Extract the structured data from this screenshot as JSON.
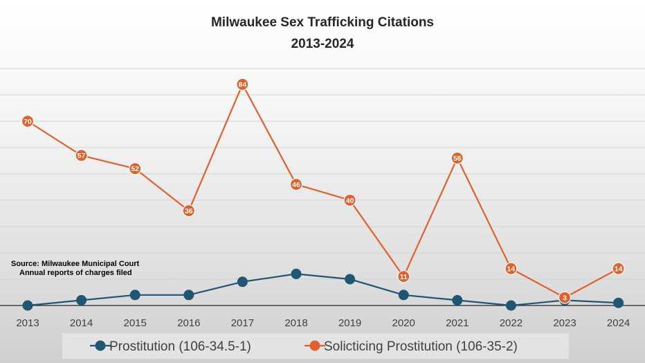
{
  "chart_data": {
    "type": "line",
    "title": "Milwaukee Sex Trafficking Citations",
    "subtitle": "2013-2024",
    "categories": [
      "2013",
      "2014",
      "2015",
      "2016",
      "2017",
      "2018",
      "2019",
      "2020",
      "2021",
      "2022",
      "2023",
      "2024"
    ],
    "series": [
      {
        "name": "Prostitution (106-34.5-1)",
        "color": "#1f5673",
        "values": [
          0,
          2,
          4,
          4,
          9,
          12,
          10,
          4,
          2,
          0,
          2,
          1
        ],
        "show_labels": false
      },
      {
        "name": "Solicticing Prostitution (106-35-2)",
        "color": "#e0612b",
        "values": [
          70,
          57,
          52,
          36,
          84,
          46,
          40,
          11,
          56,
          14,
          3,
          14
        ],
        "show_labels": true
      }
    ],
    "ylim": [
      0,
      90
    ],
    "gridline_step": 10,
    "grid": true,
    "legend_position": "bottom",
    "annotation": [
      "Source: Milwaukee Municipal Court",
      "Annual reports of charges filed"
    ]
  }
}
